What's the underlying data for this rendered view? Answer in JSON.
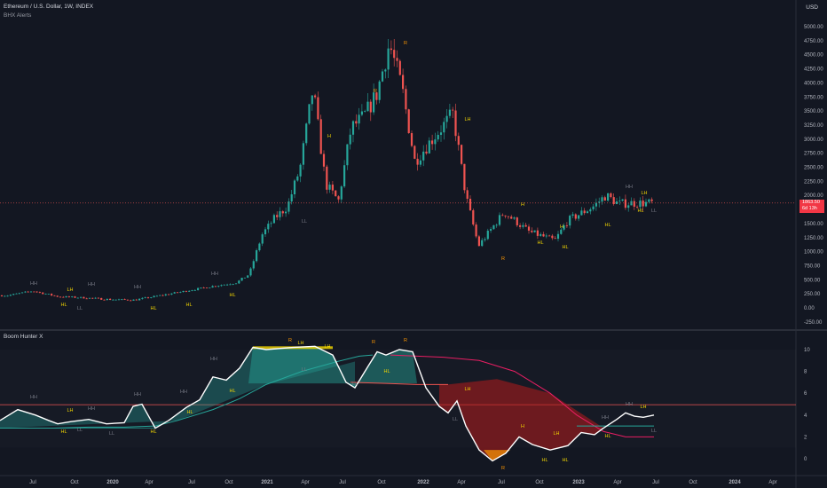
{
  "header": {
    "title": "Ethereum / U.S. Dollar, 1W, INDEX",
    "indicator": "BHX Alerts"
  },
  "currency": "USD",
  "price_tag": {
    "price": "1863.50",
    "countdown": "6d 13h"
  },
  "lower_pane": {
    "title": "Boom Hunter X"
  },
  "colors": {
    "bg": "#131722",
    "up": "#26a69a",
    "down": "#ef5350",
    "white_line": "#ffffff",
    "teal_line": "#26a69a",
    "red_line": "#e91e63",
    "label_hh": "#787b86",
    "label_lh": "#f5d800",
    "label_hl": "#f5d800",
    "label_r": "#ff9800",
    "label_ll": "#787b86",
    "label_teal": "#4fc3f7"
  },
  "chart_data": [
    {
      "type": "candlestick",
      "title": "Ethereum / U.S. Dollar, 1W, INDEX",
      "yaxis_ticks": [
        -250,
        0,
        250,
        500,
        750,
        1000,
        1250,
        1500,
        1750,
        2000,
        2250,
        2500,
        2750,
        3000,
        3250,
        3500,
        3750,
        4000,
        4250,
        4500,
        4750,
        5000
      ],
      "ylim": [
        -400,
        5350
      ],
      "xaxis_ticks": [
        "Jul",
        "Oct",
        "2020",
        "Apr",
        "Jul",
        "Oct",
        "2021",
        "Apr",
        "Jul",
        "Oct",
        "2022",
        "Apr",
        "Jul",
        "Oct",
        "2023",
        "Apr",
        "Jul",
        "Oct",
        "2024",
        "Apr"
      ],
      "close_path": [
        [
          "2019-05",
          220
        ],
        [
          "2019-07",
          300
        ],
        [
          "2019-09",
          200
        ],
        [
          "2019-11",
          180
        ],
        [
          "2020-01",
          150
        ],
        [
          "2020-03",
          140
        ],
        [
          "2020-05",
          220
        ],
        [
          "2020-07",
          300
        ],
        [
          "2020-09",
          380
        ],
        [
          "2020-11",
          450
        ],
        [
          "2020-12",
          600
        ],
        [
          "2021-01",
          1300
        ],
        [
          "2021-02",
          1600
        ],
        [
          "2021-03",
          1800
        ],
        [
          "2021-04",
          2500
        ],
        [
          "2021-05",
          3900
        ],
        [
          "2021-06",
          2200
        ],
        [
          "2021-07",
          1900
        ],
        [
          "2021-08",
          3200
        ],
        [
          "2021-09",
          3400
        ],
        [
          "2021-10",
          3800
        ],
        [
          "2021-11",
          4700
        ],
        [
          "2021-12",
          3900
        ],
        [
          "2022-01",
          2600
        ],
        [
          "2022-02",
          2900
        ],
        [
          "2022-04",
          3450
        ],
        [
          "2022-05",
          2000
        ],
        [
          "2022-06",
          1100
        ],
        [
          "2022-08",
          1700
        ],
        [
          "2022-10",
          1350
        ],
        [
          "2022-12",
          1200
        ],
        [
          "2023-01",
          1550
        ],
        [
          "2023-03",
          1800
        ],
        [
          "2023-04",
          2000
        ],
        [
          "2023-05",
          1850
        ],
        [
          "2023-06",
          1863.5
        ]
      ],
      "last_price": 1863.5,
      "labels": [
        {
          "text": "HH",
          "price": 500
        },
        {
          "text": "LH",
          "price": 420
        },
        {
          "text": "HL",
          "price": 40
        },
        {
          "text": "LL",
          "price": -20
        },
        {
          "text": "HH",
          "price": 480
        },
        {
          "text": "HL",
          "price": -20
        },
        {
          "text": "HH",
          "price": 530
        },
        {
          "text": "HL",
          "price": -20
        },
        {
          "text": "HH",
          "price": 650
        },
        {
          "text": "HL",
          "price": 250
        },
        {
          "text": "LL",
          "price": 1600
        },
        {
          "text": "H",
          "price": 3000
        },
        {
          "text": "R",
          "price": 4050
        },
        {
          "text": "R",
          "price": 4850
        },
        {
          "text": "LH",
          "price": 3450
        },
        {
          "text": "R",
          "price": 850
        },
        {
          "text": "H",
          "price": 1920
        },
        {
          "text": "HL",
          "price": 1250
        },
        {
          "text": "HL",
          "price": 1150
        },
        {
          "text": "H",
          "price": 1400
        },
        {
          "text": "HL",
          "price": 1600
        },
        {
          "text": "LH",
          "price": 2050
        },
        {
          "text": "HH",
          "price": 2150
        },
        {
          "text": "HL",
          "price": 1740
        },
        {
          "text": "LL",
          "price": 1750
        }
      ]
    },
    {
      "type": "line",
      "title": "Boom Hunter X",
      "yaxis_ticks": [
        0,
        2,
        4,
        6,
        8,
        10
      ],
      "ylim": [
        -0.7,
        10.8
      ],
      "series": [
        {
          "values": [
            [
              0,
              3.5
            ],
            [
              20,
              4.5
            ],
            [
              40,
              4.0
            ],
            [
              55,
              3.5
            ],
            [
              65,
              3.2
            ],
            [
              80,
              3.4
            ],
            [
              100,
              3.6
            ],
            [
              120,
              3.2
            ],
            [
              140,
              3.3
            ],
            [
              150,
              4.8
            ],
            [
              160,
              5.0
            ],
            [
              175,
              2.8
            ],
            [
              190,
              3.5
            ],
            [
              210,
              4.7
            ],
            [
              225,
              5.4
            ],
            [
              240,
              7.5
            ],
            [
              255,
              7.2
            ],
            [
              270,
              8.3
            ],
            [
              285,
              10.2
            ],
            [
              300,
              10.0
            ],
            [
              330,
              10.2
            ],
            [
              355,
              10.3
            ],
            [
              375,
              9.5
            ],
            [
              390,
              7.0
            ],
            [
              400,
              6.5
            ],
            [
              415,
              8.5
            ],
            [
              425,
              9.8
            ],
            [
              435,
              9.5
            ],
            [
              450,
              10.0
            ],
            [
              465,
              9.8
            ],
            [
              480,
              6.5
            ],
            [
              495,
              4.8
            ],
            [
              505,
              4.2
            ],
            [
              515,
              5.3
            ],
            [
              525,
              3.0
            ],
            [
              540,
              0.8
            ],
            [
              555,
              -0.2
            ],
            [
              570,
              0.5
            ],
            [
              585,
              2.0
            ],
            [
              600,
              1.3
            ],
            [
              620,
              0.8
            ],
            [
              640,
              1.2
            ],
            [
              655,
              2.4
            ],
            [
              670,
              2.2
            ],
            [
              680,
              2.8
            ],
            [
              695,
              3.6
            ],
            [
              705,
              4.2
            ],
            [
              715,
              3.9
            ],
            [
              725,
              3.8
            ],
            [
              737,
              4.0
            ]
          ]
        },
        {
          "values": [
            [
              0,
              2.8
            ],
            [
              60,
              2.8
            ],
            [
              100,
              2.9
            ],
            [
              140,
              2.9
            ],
            [
              175,
              3.0
            ],
            [
              200,
              3.5
            ],
            [
              240,
              4.5
            ],
            [
              270,
              5.5
            ],
            [
              300,
              6.8
            ],
            [
              340,
              8.0
            ],
            [
              380,
              8.9
            ],
            [
              405,
              9.4
            ],
            [
              420,
              9.5
            ]
          ]
        },
        {
          "values": [
            [
              395,
              7.0
            ],
            [
              435,
              6.9
            ],
            [
              470,
              6.8
            ],
            [
              505,
              6.8
            ]
          ]
        },
        {
          "values": [
            [
              0,
              4.95
            ],
            [
              170,
              4.95
            ],
            [
              175,
              4.9
            ],
            [
              440,
              4.9
            ]
          ]
        },
        {
          "values": [
            [
              440,
              9.5
            ],
            [
              500,
              9.3
            ],
            [
              540,
              9.0
            ],
            [
              580,
              8.0
            ],
            [
              620,
              6.0
            ],
            [
              650,
              4.0
            ],
            [
              680,
              2.5
            ],
            [
              705,
              2.0
            ],
            [
              737,
              2.0
            ]
          ]
        },
        {
          "values": [
            [
              650,
              3.0
            ],
            [
              737,
              3.0
            ]
          ]
        }
      ]
    }
  ]
}
